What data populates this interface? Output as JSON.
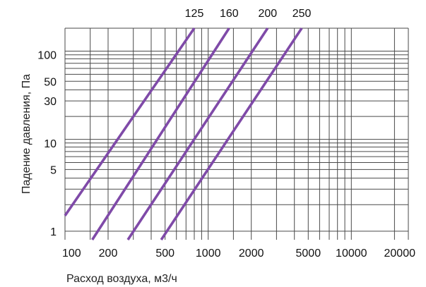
{
  "chart_data": {
    "type": "line",
    "title": "",
    "xlabel": "Расход воздуха, м3/ч",
    "ylabel": "Падение давления, Па",
    "x_scale": "log",
    "y_scale": "log",
    "xlim": [
      100,
      25000
    ],
    "ylim": [
      0.8,
      200
    ],
    "grid": true,
    "legend": "top, labels above line ends",
    "line_color": "#7f4aa8",
    "x_ticks": [
      100,
      200,
      500,
      1000,
      2000,
      5000,
      10000,
      20000
    ],
    "x_tick_labels": [
      "100",
      "200",
      "500",
      "1000",
      "2000",
      "5000",
      "10000",
      "20000"
    ],
    "y_ticks": [
      1,
      5,
      10,
      30,
      50,
      100
    ],
    "y_tick_labels": [
      "1",
      "5",
      "10",
      "30",
      "50",
      "100"
    ],
    "x_grid": [
      100,
      150,
      200,
      300,
      400,
      500,
      600,
      700,
      800,
      900,
      1000,
      1500,
      2000,
      3000,
      4000,
      5000,
      6000,
      7000,
      8000,
      9000,
      10000,
      20000,
      25000
    ],
    "y_grid": [
      1,
      2,
      3,
      4,
      5,
      6,
      7,
      8,
      9,
      10,
      11,
      20,
      30,
      40,
      50,
      60,
      70,
      80,
      90,
      100,
      110,
      200
    ],
    "series": [
      {
        "name": "125",
        "x": [
          100,
          800
        ],
        "y": [
          1.5,
          200
        ]
      },
      {
        "name": "160",
        "x": [
          155,
          1400
        ],
        "y": [
          0.8,
          200
        ]
      },
      {
        "name": "200",
        "x": [
          275,
          2600
        ],
        "y": [
          0.8,
          200
        ]
      },
      {
        "name": "250",
        "x": [
          470,
          4500
        ],
        "y": [
          0.8,
          200
        ]
      }
    ]
  }
}
